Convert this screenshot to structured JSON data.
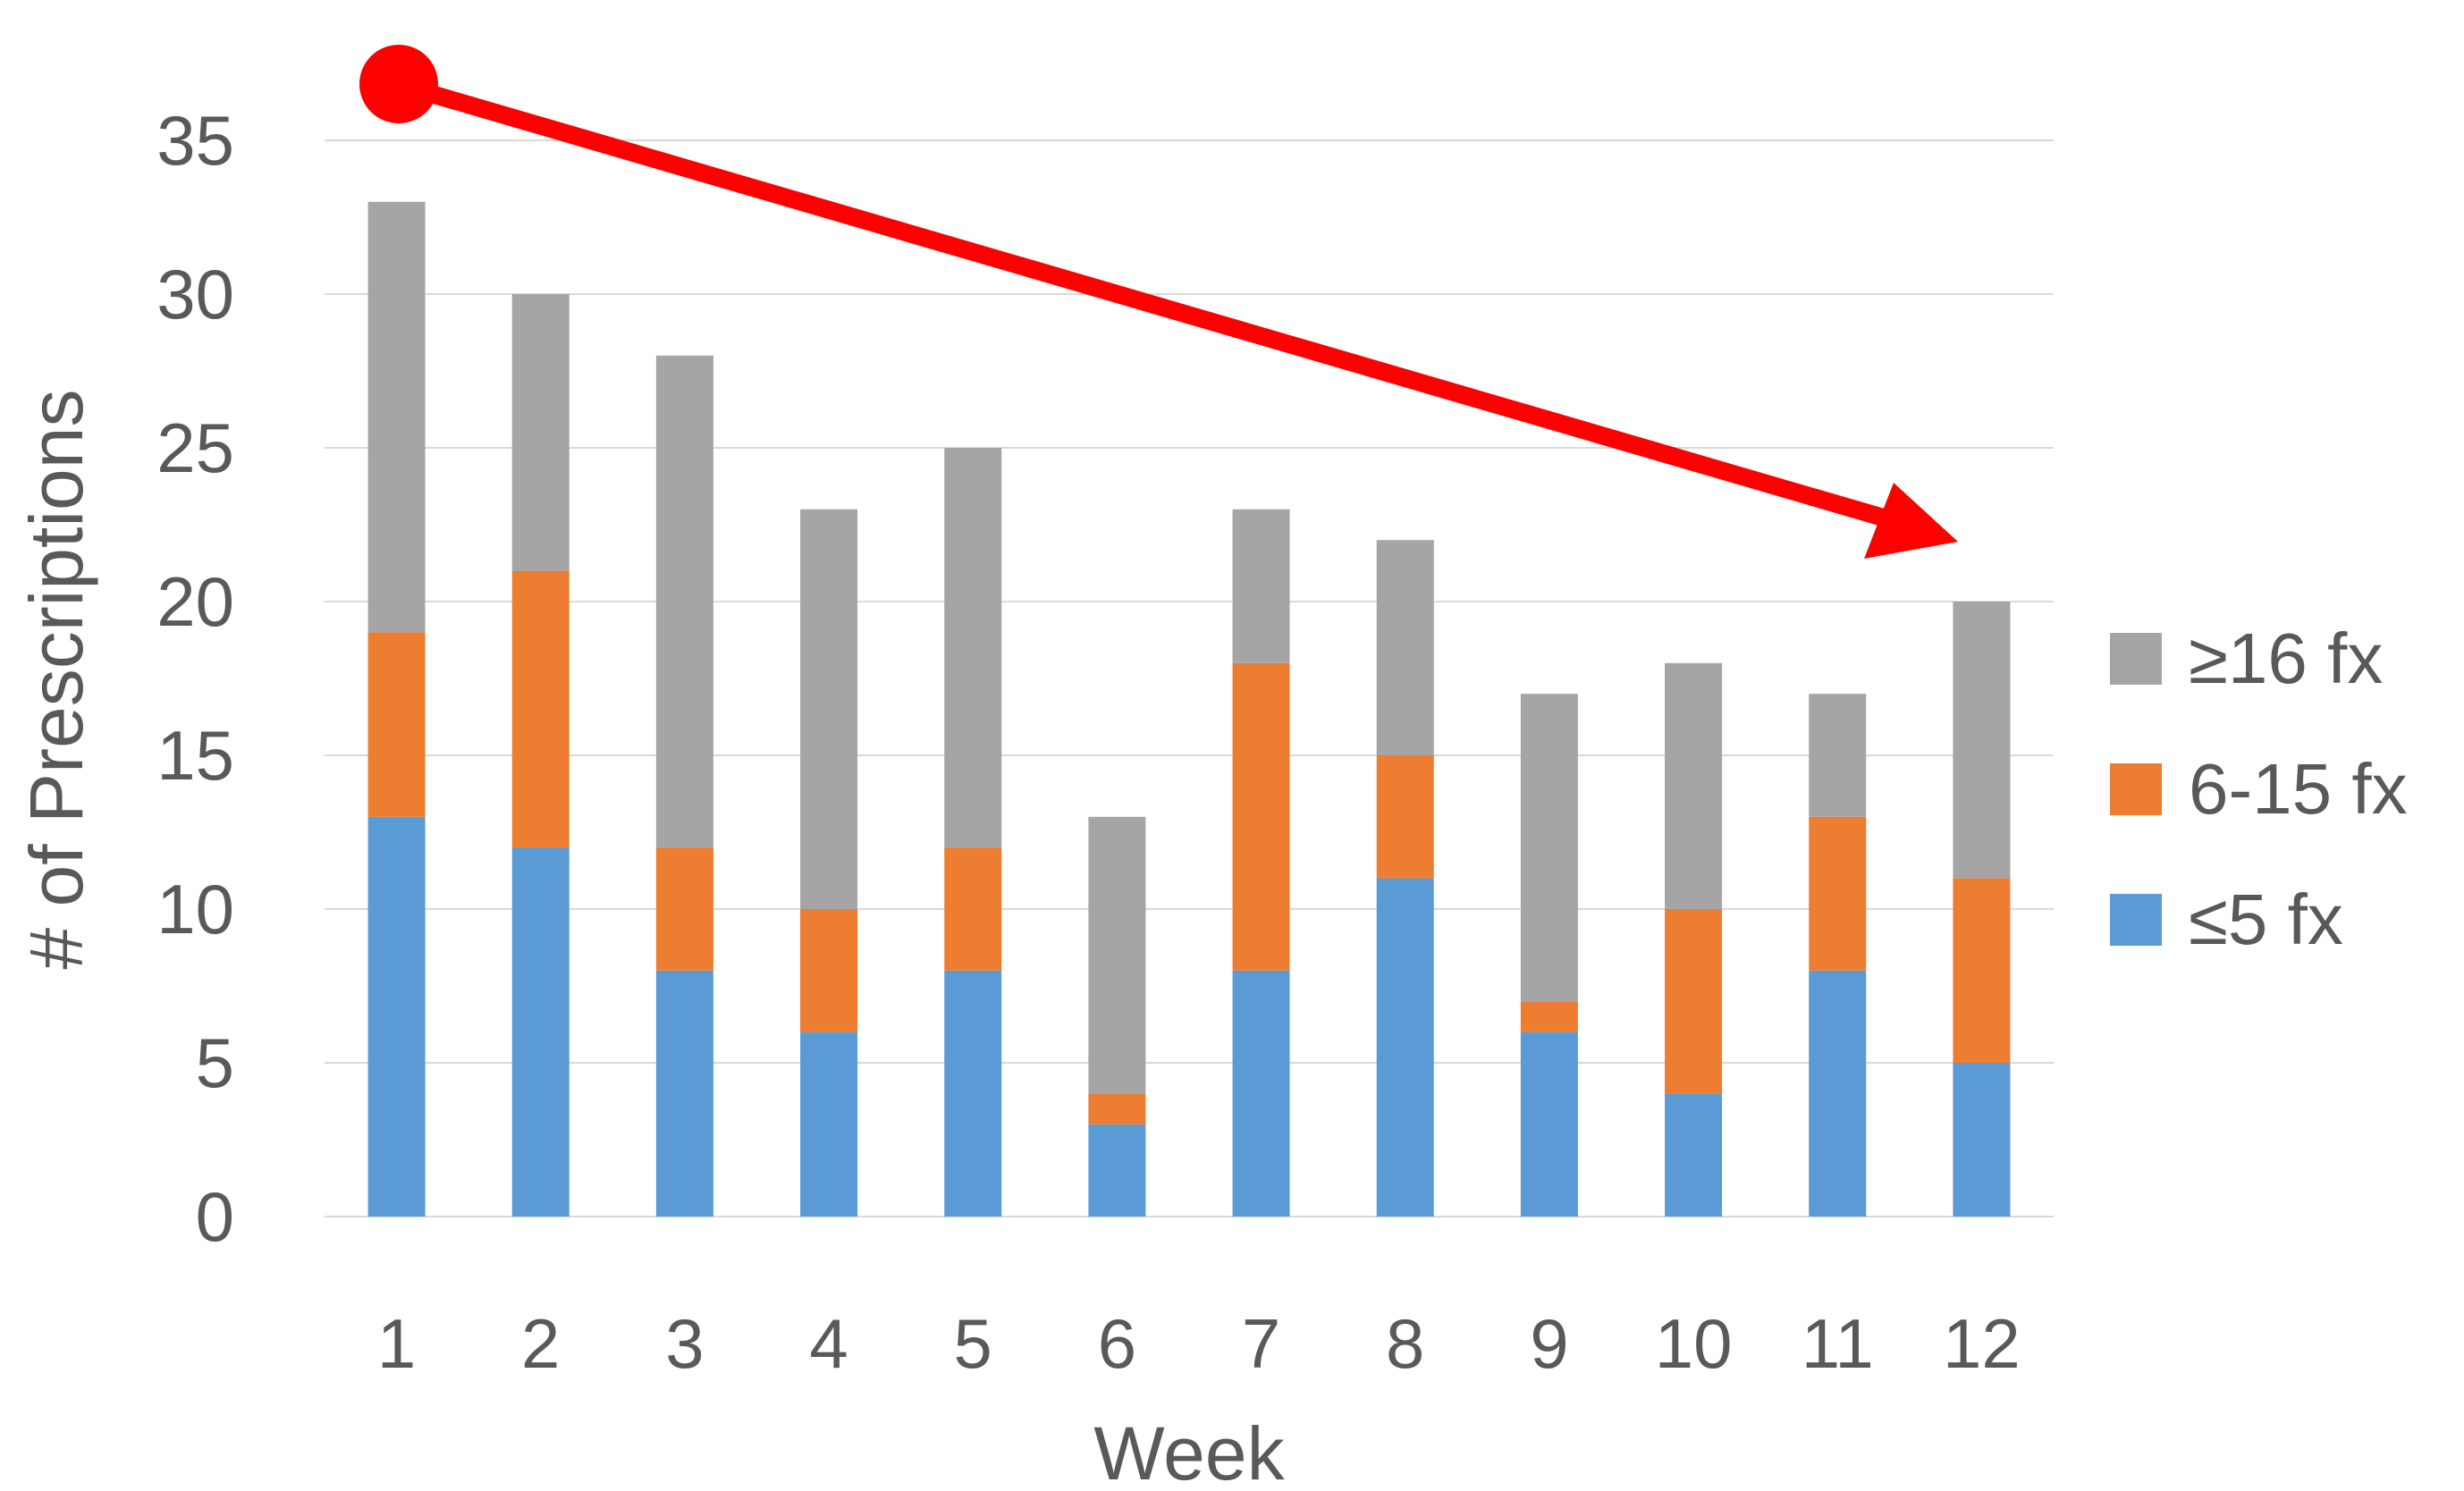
{
  "chart_data": {
    "type": "bar",
    "stacked": true,
    "categories": [
      "1",
      "2",
      "3",
      "4",
      "5",
      "6",
      "7",
      "8",
      "9",
      "10",
      "11",
      "12"
    ],
    "series": [
      {
        "name": "≤5 fx",
        "color": "#5b9bd5",
        "values": [
          13,
          12,
          8,
          6,
          8,
          3,
          8,
          11,
          6,
          4,
          8,
          5
        ]
      },
      {
        "name": "6-15 fx",
        "color": "#ed7d31",
        "values": [
          6,
          9,
          4,
          4,
          4,
          1,
          10,
          4,
          1,
          6,
          5,
          6
        ]
      },
      {
        "name": "≥16 fx",
        "color": "#a5a5a5",
        "values": [
          14,
          9,
          16,
          13,
          13,
          9,
          5,
          7,
          10,
          8,
          4,
          9
        ]
      }
    ],
    "legend_order": [
      "≥16 fx",
      "6-15 fx",
      "≤5 fx"
    ],
    "xlabel": "Week",
    "ylabel": "# of Prescriptions",
    "ylim": [
      0,
      35
    ],
    "yticks": [
      0,
      5,
      10,
      15,
      20,
      25,
      30,
      35
    ],
    "grid": true,
    "legend_position": "right",
    "annotation": {
      "type": "trend-arrow",
      "color": "#ff0000",
      "direction": "downward"
    }
  }
}
